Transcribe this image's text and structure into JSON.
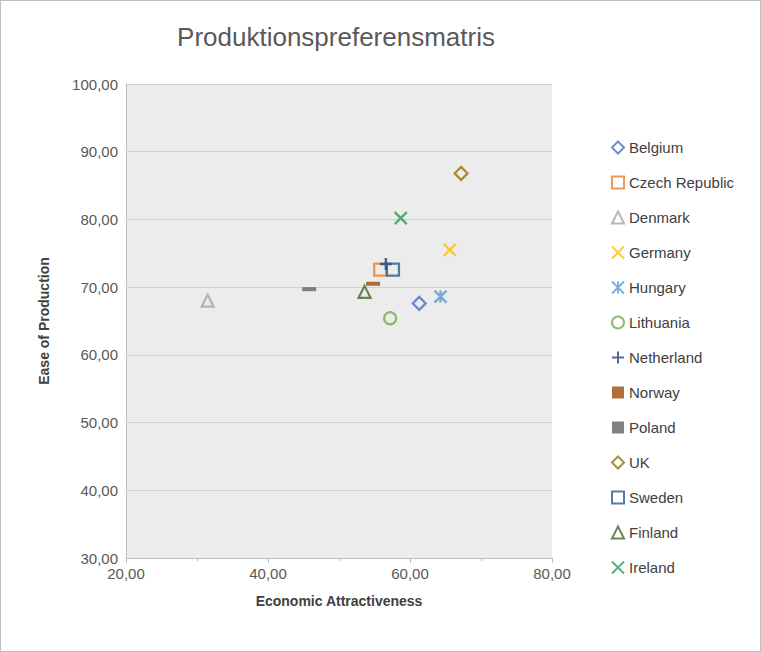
{
  "chart_data": {
    "type": "scatter",
    "title": "Produktionspreferensmatris",
    "x_label": "Economic Attractiveness",
    "y_label": "Ease of Production",
    "xlim": [
      20,
      80
    ],
    "xticks": [
      {
        "value": 20,
        "label": "20,00"
      },
      {
        "value": 40,
        "label": "40,00"
      },
      {
        "value": 60,
        "label": "60,00"
      },
      {
        "value": 80,
        "label": "80,00"
      }
    ],
    "ylim": [
      30,
      100
    ],
    "yticks": [
      {
        "value": 30,
        "label": "30,00"
      },
      {
        "value": 40,
        "label": "40,00"
      },
      {
        "value": 50,
        "label": "50,00"
      },
      {
        "value": 60,
        "label": "60,00"
      },
      {
        "value": 70,
        "label": "70,00"
      },
      {
        "value": 80,
        "label": "80,00"
      },
      {
        "value": 90,
        "label": "90,00"
      },
      {
        "value": 100,
        "label": "100,00"
      }
    ],
    "grid": true,
    "legend": "right",
    "series": [
      {
        "name": "Belgium",
        "color": "#4472c4",
        "marker": "diamond",
        "x": [
          61.3
        ],
        "values": [
          67.6
        ]
      },
      {
        "name": "Czech Republic",
        "color": "#ed7d31",
        "marker": "square",
        "x": [
          55.8
        ],
        "values": [
          72.6
        ]
      },
      {
        "name": "Denmark",
        "color": "#a5a5a5",
        "marker": "triangle",
        "x": [
          31.5
        ],
        "values": [
          68.0
        ]
      },
      {
        "name": "Germany",
        "color": "#ffc000",
        "marker": "x",
        "x": [
          65.6
        ],
        "values": [
          75.5
        ]
      },
      {
        "name": "Hungary",
        "color": "#5b9bd5",
        "marker": "star",
        "x": [
          64.3
        ],
        "values": [
          68.6
        ]
      },
      {
        "name": "Lithuania",
        "color": "#70ad47",
        "marker": "circle",
        "x": [
          57.2
        ],
        "values": [
          65.4
        ]
      },
      {
        "name": "Netherland",
        "color": "#264478",
        "marker": "plus",
        "x": [
          56.6
        ],
        "values": [
          73.4
        ]
      },
      {
        "name": "Norway",
        "color": "#9e480e",
        "marker": "dash",
        "x": [
          54.8
        ],
        "values": [
          70.5
        ]
      },
      {
        "name": "Poland",
        "color": "#636363",
        "marker": "dash",
        "x": [
          45.8
        ],
        "values": [
          69.7
        ]
      },
      {
        "name": "UK",
        "color": "#997300",
        "marker": "diamond",
        "x": [
          67.2
        ],
        "values": [
          86.8
        ]
      },
      {
        "name": "Sweden",
        "color": "#255e91",
        "marker": "square",
        "x": [
          57.6
        ],
        "values": [
          72.6
        ]
      },
      {
        "name": "Finland",
        "color": "#43682b",
        "marker": "triangle",
        "x": [
          53.6
        ],
        "values": [
          69.3
        ]
      },
      {
        "name": "Ireland",
        "color": "#2e9e5b",
        "marker": "x",
        "x": [
          58.7
        ],
        "values": [
          80.2
        ]
      }
    ]
  }
}
